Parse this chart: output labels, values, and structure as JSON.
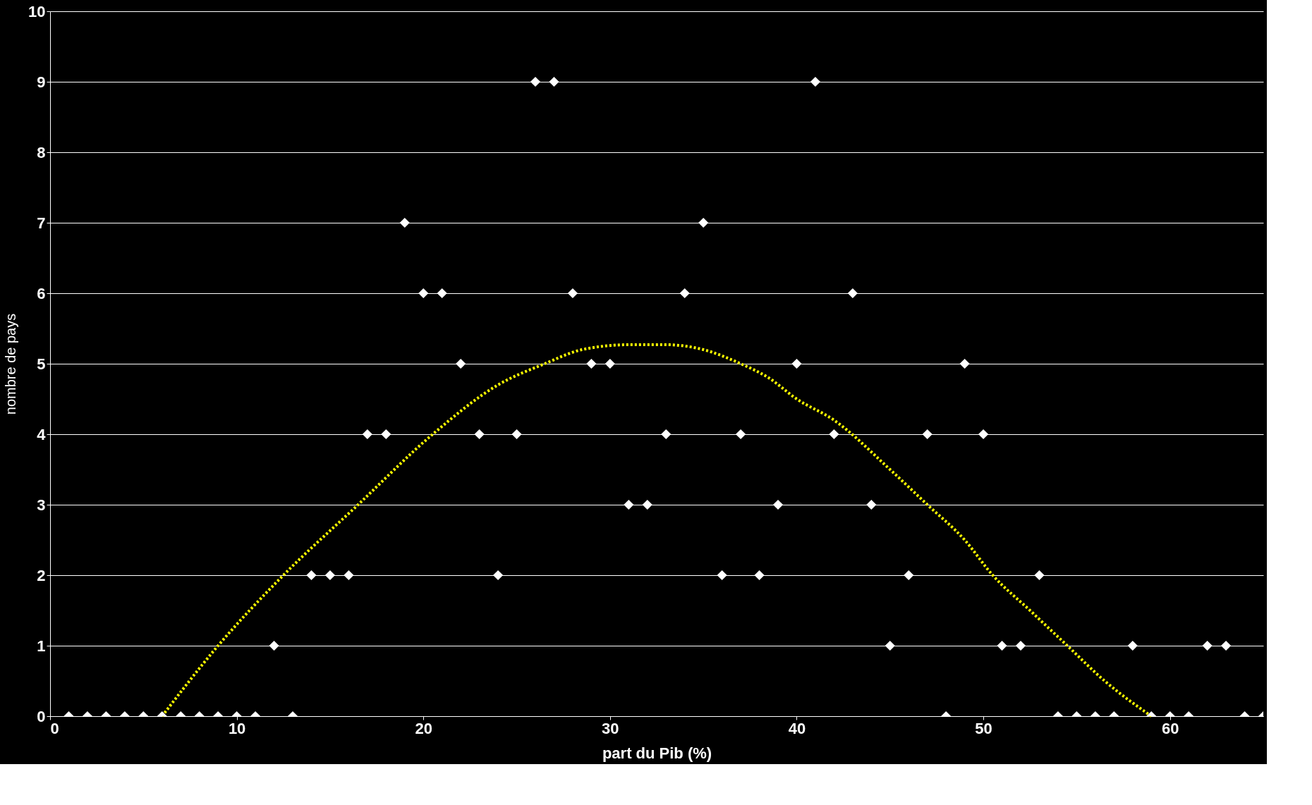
{
  "chart_data": {
    "type": "scatter",
    "xlabel": "part du Pib (%)",
    "ylabel": "nombre de pays",
    "xlim": [
      0,
      65
    ],
    "xticks": [
      0,
      10,
      20,
      30,
      40,
      50,
      60
    ],
    "ylim": [
      0,
      10
    ],
    "yticks": [
      0,
      1,
      2,
      3,
      4,
      5,
      6,
      7,
      8,
      9,
      10
    ],
    "grid": "y",
    "series": [
      {
        "color": "#ffffff",
        "marker": "diamond",
        "x": [
          1,
          2,
          3,
          4,
          5,
          6,
          7,
          8,
          9,
          10,
          11,
          12,
          13,
          14,
          15,
          16,
          17,
          18,
          19,
          20,
          21,
          22,
          23,
          24,
          25,
          26,
          27,
          28,
          29,
          30,
          31,
          32,
          33,
          34,
          35,
          36,
          37,
          38,
          39,
          40,
          41,
          42,
          43,
          44,
          45,
          46,
          47,
          48,
          49,
          50,
          51,
          52,
          53,
          54,
          55,
          56,
          57,
          58,
          59,
          60,
          61,
          62,
          63,
          64,
          65
        ],
        "values": [
          0,
          0,
          0,
          0,
          0,
          0,
          0,
          0,
          0,
          0,
          0,
          1,
          0,
          2,
          2,
          2,
          4,
          4,
          7,
          6,
          6,
          5,
          4,
          2,
          4,
          9,
          9,
          6,
          5,
          5,
          3,
          3,
          4,
          6,
          7,
          2,
          4,
          2,
          3,
          5,
          9,
          4,
          6,
          3,
          1,
          2,
          4,
          0,
          5,
          4,
          1,
          1,
          2,
          0,
          0,
          0,
          0,
          1,
          0,
          0,
          0,
          1,
          1,
          0,
          0
        ]
      },
      {
        "type": "line",
        "color": "#ffff00",
        "line_style": "dotted",
        "x": [
          6,
          9,
          12.5,
          16.5,
          20.5,
          24,
          26.5,
          28.5,
          31,
          33,
          35,
          37,
          38.5,
          40,
          42,
          45,
          47,
          49,
          50.5,
          52.5,
          54.5,
          56.5,
          59
        ],
        "values": [
          0,
          1,
          2,
          3,
          4,
          4.7,
          5,
          5.2,
          5.27,
          5.27,
          5.2,
          5,
          4.8,
          4.5,
          4.2,
          3.5,
          3,
          2.5,
          2,
          1.5,
          1,
          0.5,
          0
        ]
      }
    ]
  }
}
